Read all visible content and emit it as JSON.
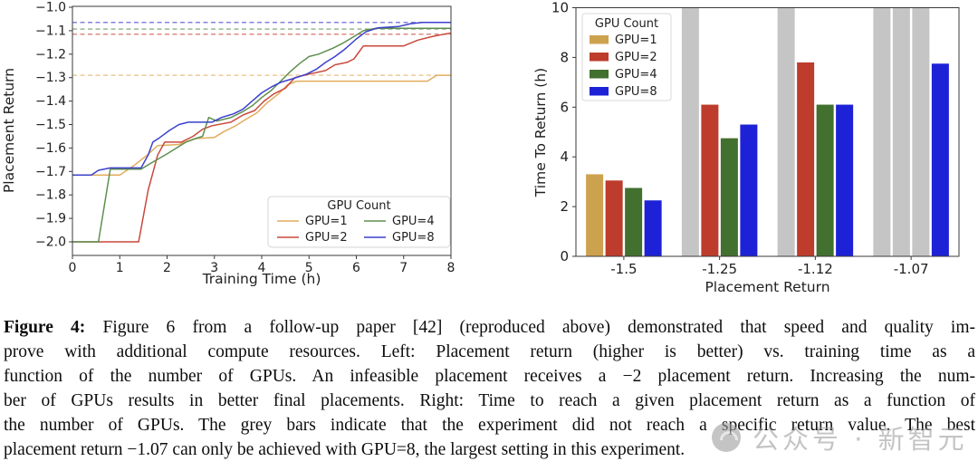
{
  "caption": {
    "label": "Figure 4:",
    "lines": [
      "Figure 6 from a follow-up paper [42] (reproduced above) demonstrated that speed and quality im-",
      "prove with additional compute resources.  Left: Placement return (higher is better) vs.  training time as a",
      "function of the number of GPUs. An infeasible placement receives a −2 placement return. Increasing the num-",
      "ber of GPUs results in better final placements. Right: Time to reach a given placement return as a function of",
      "the number of GPUs. The grey bars indicate that the experiment did not reach a specific return value. The best",
      "placement return −1.07 can only be achieved with GPU=8, the largest setting in this experiment."
    ]
  },
  "watermark": {
    "icon": "logo-circle-icon",
    "text": "公众号 · 新智元",
    "color": "#9d9d9d"
  },
  "chart_data": [
    {
      "type": "line",
      "title": "",
      "xlabel": "Training Time (h)",
      "ylabel": "Placement Return",
      "xlim": [
        0,
        8
      ],
      "ylim": [
        -2.06,
        -1.0
      ],
      "xticks": [
        0,
        1,
        2,
        3,
        4,
        5,
        6,
        7,
        8
      ],
      "yticks": [
        -1.0,
        -1.1,
        -1.2,
        -1.3,
        -1.4,
        -1.5,
        -1.6,
        -1.7,
        -1.8,
        -1.9,
        -2.0
      ],
      "grid": false,
      "legend_title": "GPU Count",
      "legend_position": "lower right",
      "series": [
        {
          "name": "GPU=1",
          "color": "#E2AC5E",
          "final_return_dashed": -1.29,
          "points": [
            [
              0,
              -1.715
            ],
            [
              1.0,
              -1.715
            ],
            [
              1.3,
              -1.675
            ],
            [
              1.55,
              -1.635
            ],
            [
              1.8,
              -1.59
            ],
            [
              2.25,
              -1.585
            ],
            [
              2.45,
              -1.57
            ],
            [
              2.6,
              -1.56
            ],
            [
              3.0,
              -1.555
            ],
            [
              3.2,
              -1.53
            ],
            [
              3.45,
              -1.505
            ],
            [
              3.65,
              -1.48
            ],
            [
              3.9,
              -1.45
            ],
            [
              4.1,
              -1.41
            ],
            [
              4.35,
              -1.37
            ],
            [
              4.55,
              -1.33
            ],
            [
              4.75,
              -1.315
            ],
            [
              7.5,
              -1.315
            ],
            [
              7.7,
              -1.29
            ],
            [
              8,
              -1.29
            ]
          ]
        },
        {
          "name": "GPU=2",
          "color": "#C9493C",
          "final_return_dashed": -1.115,
          "points": [
            [
              0,
              -2.0
            ],
            [
              1.4,
              -2.0
            ],
            [
              1.6,
              -1.78
            ],
            [
              1.8,
              -1.63
            ],
            [
              1.95,
              -1.575
            ],
            [
              2.3,
              -1.575
            ],
            [
              2.55,
              -1.55
            ],
            [
              2.75,
              -1.52
            ],
            [
              2.95,
              -1.505
            ],
            [
              3.35,
              -1.49
            ],
            [
              3.6,
              -1.46
            ],
            [
              3.85,
              -1.44
            ],
            [
              4.05,
              -1.4
            ],
            [
              4.25,
              -1.37
            ],
            [
              4.5,
              -1.345
            ],
            [
              4.7,
              -1.3
            ],
            [
              5.0,
              -1.285
            ],
            [
              5.35,
              -1.27
            ],
            [
              5.55,
              -1.245
            ],
            [
              5.8,
              -1.235
            ],
            [
              5.95,
              -1.22
            ],
            [
              6.15,
              -1.165
            ],
            [
              7.0,
              -1.165
            ],
            [
              7.3,
              -1.14
            ],
            [
              7.6,
              -1.125
            ],
            [
              7.85,
              -1.115
            ],
            [
              8,
              -1.11
            ]
          ]
        },
        {
          "name": "GPU=4",
          "color": "#5F8F4F",
          "final_return_dashed": -1.093,
          "points": [
            [
              0,
              -2.0
            ],
            [
              0.55,
              -2.0
            ],
            [
              0.8,
              -1.69
            ],
            [
              1.45,
              -1.69
            ],
            [
              1.7,
              -1.66
            ],
            [
              2.0,
              -1.625
            ],
            [
              2.2,
              -1.6
            ],
            [
              2.4,
              -1.575
            ],
            [
              2.6,
              -1.56
            ],
            [
              2.75,
              -1.55
            ],
            [
              2.88,
              -1.47
            ],
            [
              3.05,
              -1.485
            ],
            [
              3.35,
              -1.47
            ],
            [
              3.6,
              -1.445
            ],
            [
              3.8,
              -1.42
            ],
            [
              4.0,
              -1.385
            ],
            [
              4.2,
              -1.355
            ],
            [
              4.4,
              -1.315
            ],
            [
              4.6,
              -1.275
            ],
            [
              4.8,
              -1.24
            ],
            [
              5.0,
              -1.21
            ],
            [
              5.2,
              -1.2
            ],
            [
              5.5,
              -1.175
            ],
            [
              5.7,
              -1.155
            ],
            [
              5.95,
              -1.125
            ],
            [
              6.15,
              -1.1
            ],
            [
              6.4,
              -1.09
            ],
            [
              8,
              -1.09
            ]
          ]
        },
        {
          "name": "GPU=8",
          "color": "#3B41CC",
          "final_return_dashed": -1.065,
          "points": [
            [
              0,
              -1.715
            ],
            [
              0.4,
              -1.715
            ],
            [
              0.55,
              -1.695
            ],
            [
              0.8,
              -1.685
            ],
            [
              1.45,
              -1.685
            ],
            [
              1.6,
              -1.63
            ],
            [
              1.7,
              -1.575
            ],
            [
              1.85,
              -1.555
            ],
            [
              2.05,
              -1.525
            ],
            [
              2.25,
              -1.5
            ],
            [
              2.45,
              -1.49
            ],
            [
              2.95,
              -1.49
            ],
            [
              3.15,
              -1.47
            ],
            [
              3.4,
              -1.455
            ],
            [
              3.6,
              -1.435
            ],
            [
              3.8,
              -1.4
            ],
            [
              4.0,
              -1.365
            ],
            [
              4.2,
              -1.34
            ],
            [
              4.4,
              -1.32
            ],
            [
              4.65,
              -1.305
            ],
            [
              4.95,
              -1.285
            ],
            [
              5.15,
              -1.265
            ],
            [
              5.35,
              -1.235
            ],
            [
              5.55,
              -1.21
            ],
            [
              5.75,
              -1.18
            ],
            [
              6.0,
              -1.135
            ],
            [
              6.2,
              -1.105
            ],
            [
              6.45,
              -1.088
            ],
            [
              6.9,
              -1.082
            ],
            [
              7.15,
              -1.07
            ],
            [
              7.4,
              -1.065
            ],
            [
              8,
              -1.065
            ]
          ]
        }
      ]
    },
    {
      "type": "bar",
      "title": "",
      "xlabel": "Placement Return",
      "ylabel": "Time To Return (h)",
      "ylim": [
        0,
        10
      ],
      "yticks": [
        0,
        2,
        4,
        6,
        8,
        10
      ],
      "categories": [
        "-1.5",
        "-1.25",
        "-1.12",
        "-1.07"
      ],
      "grid": false,
      "legend_title": "GPU Count",
      "legend_position": "upper left",
      "not_reached_color": "#C5C5C5",
      "not_reached_value": 10,
      "series": [
        {
          "name": "GPU=1",
          "color": "#CDA24F",
          "values": [
            3.3,
            null,
            null,
            null
          ]
        },
        {
          "name": "GPU=2",
          "color": "#BE3C2C",
          "values": [
            3.05,
            6.1,
            7.8,
            null
          ]
        },
        {
          "name": "GPU=4",
          "color": "#42702E",
          "values": [
            2.75,
            4.75,
            6.1,
            null
          ]
        },
        {
          "name": "GPU=8",
          "color": "#1E22D6",
          "values": [
            2.25,
            5.3,
            6.1,
            7.75
          ]
        }
      ]
    }
  ]
}
